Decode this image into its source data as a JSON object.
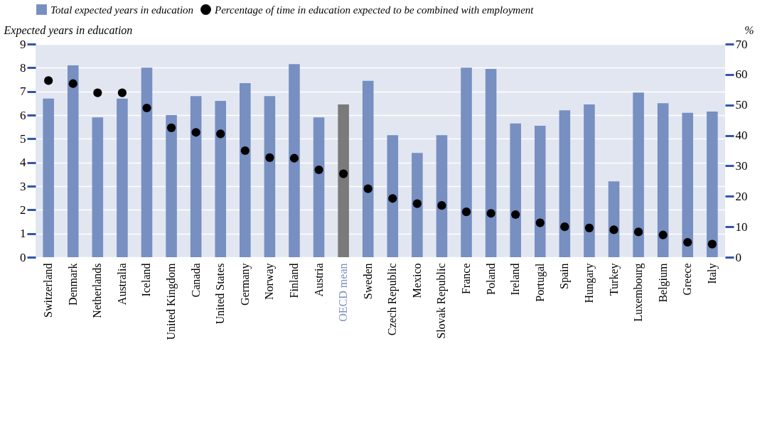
{
  "chart_data": {
    "type": "bar",
    "categories": [
      "Switzerland",
      "Denmark",
      "Netherlands",
      "Australia",
      "Iceland",
      "United Kingdom",
      "Canada",
      "United States",
      "Germany",
      "Norway",
      "Finland",
      "Austria",
      "OECD mean",
      "Sweden",
      "Czech Republic",
      "Mexico",
      "Slovak Republic",
      "France",
      "Poland",
      "Ireland",
      "Portugal",
      "Spain",
      "Hungary",
      "Turkey",
      "Luxembourg",
      "Belgium",
      "Greece",
      "Italy"
    ],
    "series": [
      {
        "name": "Total expected years in education",
        "color": "#778fc1",
        "colors": [
          "#778fc1",
          "#778fc1",
          "#778fc1",
          "#778fc1",
          "#778fc1",
          "#778fc1",
          "#778fc1",
          "#778fc1",
          "#778fc1",
          "#778fc1",
          "#778fc1",
          "#778fc1",
          "#7a7a7a",
          "#778fc1",
          "#778fc1",
          "#778fc1",
          "#778fc1",
          "#778fc1",
          "#778fc1",
          "#778fc1",
          "#778fc1",
          "#778fc1",
          "#778fc1",
          "#778fc1",
          "#778fc1",
          "#778fc1",
          "#778fc1",
          "#778fc1"
        ],
        "values": [
          6.7,
          8.1,
          5.9,
          6.7,
          8.0,
          6.0,
          6.8,
          6.6,
          7.35,
          6.8,
          8.15,
          5.9,
          6.45,
          7.45,
          5.15,
          4.4,
          5.15,
          8.0,
          7.95,
          5.65,
          5.55,
          6.2,
          6.45,
          3.2,
          6.95,
          6.5,
          6.1,
          6.15
        ]
      },
      {
        "name": "Percentage of time in education expected to be combined with employment",
        "type": "scatter",
        "axis": "y2",
        "color": "#000000",
        "values": [
          58,
          57,
          54,
          54,
          49,
          42.5,
          41,
          40.5,
          35,
          32.7,
          32.5,
          28.7,
          27.4,
          22.5,
          19.3,
          17.6,
          17,
          14.9,
          14.4,
          14,
          11.3,
          10,
          9.6,
          9,
          8.3,
          7.3,
          4.9,
          4.3
        ]
      }
    ],
    "ylabel": "Expected years in education",
    "y2label": "%",
    "ylim": [
      0,
      9
    ],
    "yticks": [
      0,
      1,
      2,
      3,
      4,
      5,
      6,
      7,
      8,
      9
    ],
    "y2lim": [
      0,
      70
    ],
    "y2ticks": [
      0,
      10,
      20,
      30,
      40,
      50,
      60,
      70
    ],
    "grid": "y",
    "legend": "top",
    "marker": "circle"
  }
}
